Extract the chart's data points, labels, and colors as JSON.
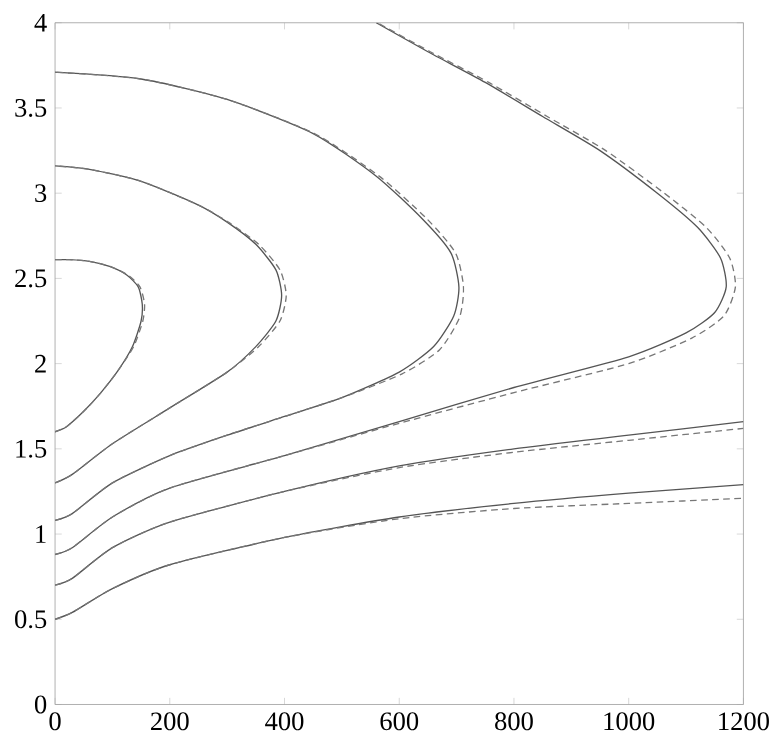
{
  "chart_data": {
    "type": "line",
    "xlim": [
      0,
      1200
    ],
    "ylim": [
      0,
      4
    ],
    "xticks": [
      0,
      200,
      400,
      600,
      800,
      1000,
      1200
    ],
    "yticks": [
      0,
      0.5,
      1,
      1.5,
      2,
      2.5,
      3,
      3.5,
      4
    ],
    "grid": false,
    "marker": "none",
    "series": [
      {
        "color": "#555555",
        "line_style": "solid",
        "x": [
          0,
          20,
          50,
          80,
          110,
          135,
          150,
          152,
          145,
          125,
          95,
          60,
          25,
          0
        ],
        "values": [
          1.6,
          1.63,
          1.72,
          1.83,
          1.96,
          2.1,
          2.25,
          2.35,
          2.45,
          2.52,
          2.57,
          2.6,
          2.61,
          2.61
        ]
      },
      {
        "color": "#777777",
        "line_style": "dashed",
        "x": [
          0,
          20,
          50,
          80,
          110,
          137,
          153,
          156,
          148,
          127,
          96,
          60,
          25,
          0
        ],
        "values": [
          1.6,
          1.63,
          1.72,
          1.83,
          1.96,
          2.1,
          2.25,
          2.35,
          2.45,
          2.52,
          2.57,
          2.6,
          2.61,
          2.61
        ]
      },
      {
        "color": "#555555",
        "line_style": "solid",
        "x": [
          0,
          30,
          100,
          200,
          300,
          350,
          385,
          395,
          385,
          350,
          300,
          250,
          150,
          60,
          0
        ],
        "values": [
          1.3,
          1.35,
          1.53,
          1.74,
          1.95,
          2.1,
          2.25,
          2.4,
          2.55,
          2.7,
          2.83,
          2.93,
          3.07,
          3.14,
          3.16
        ]
      },
      {
        "color": "#777777",
        "line_style": "dashed",
        "x": [
          0,
          30,
          100,
          200,
          300,
          355,
          392,
          403,
          392,
          355,
          302,
          250,
          150,
          60,
          0
        ],
        "values": [
          1.3,
          1.35,
          1.53,
          1.74,
          1.95,
          2.1,
          2.25,
          2.4,
          2.55,
          2.7,
          2.83,
          2.93,
          3.07,
          3.14,
          3.16
        ]
      },
      {
        "color": "#555555",
        "line_style": "solid",
        "x": [
          0,
          30,
          100,
          200,
          300,
          400,
          500,
          600,
          660,
          695,
          704,
          690,
          640,
          560,
          450,
          300,
          150,
          0
        ],
        "values": [
          1.08,
          1.12,
          1.3,
          1.46,
          1.58,
          1.69,
          1.8,
          1.95,
          2.1,
          2.28,
          2.45,
          2.65,
          2.85,
          3.1,
          3.35,
          3.55,
          3.67,
          3.71
        ]
      },
      {
        "color": "#777777",
        "line_style": "dashed",
        "x": [
          0,
          30,
          100,
          200,
          300,
          400,
          500,
          605,
          670,
          705,
          712,
          698,
          648,
          565,
          452,
          300,
          150,
          0
        ],
        "values": [
          1.08,
          1.12,
          1.3,
          1.46,
          1.58,
          1.69,
          1.8,
          1.94,
          2.08,
          2.27,
          2.45,
          2.65,
          2.85,
          3.1,
          3.35,
          3.55,
          3.67,
          3.71
        ]
      },
      {
        "color": "#555555",
        "line_style": "solid",
        "x": [
          0,
          30,
          100,
          200,
          400,
          600,
          800,
          1000,
          1100,
          1150,
          1170,
          1160,
          1120,
          1050,
          950,
          850,
          750,
          650,
          560
        ],
        "values": [
          0.88,
          0.92,
          1.1,
          1.27,
          1.46,
          1.66,
          1.86,
          2.04,
          2.18,
          2.3,
          2.45,
          2.62,
          2.8,
          3.0,
          3.25,
          3.45,
          3.65,
          3.83,
          4.0
        ]
      },
      {
        "color": "#777777",
        "line_style": "dashed",
        "x": [
          0,
          30,
          100,
          200,
          400,
          600,
          800,
          1000,
          1110,
          1166,
          1186,
          1176,
          1135,
          1062,
          960,
          858,
          756,
          654,
          562
        ],
        "values": [
          0.88,
          0.92,
          1.1,
          1.27,
          1.46,
          1.65,
          1.83,
          2.0,
          2.15,
          2.28,
          2.45,
          2.62,
          2.8,
          3.0,
          3.25,
          3.45,
          3.65,
          3.83,
          4.0
        ]
      },
      {
        "color": "#555555",
        "line_style": "solid",
        "x": [
          0,
          30,
          100,
          200,
          400,
          600,
          800,
          1000,
          1200
        ],
        "values": [
          0.7,
          0.74,
          0.92,
          1.07,
          1.25,
          1.4,
          1.5,
          1.58,
          1.66
        ]
      },
      {
        "color": "#777777",
        "line_style": "dashed",
        "x": [
          0,
          30,
          100,
          200,
          400,
          600,
          800,
          1000,
          1200
        ],
        "values": [
          0.7,
          0.74,
          0.92,
          1.07,
          1.25,
          1.39,
          1.48,
          1.55,
          1.62
        ]
      },
      {
        "color": "#555555",
        "line_style": "solid",
        "x": [
          0,
          30,
          100,
          200,
          400,
          600,
          800,
          1000,
          1200
        ],
        "values": [
          0.5,
          0.54,
          0.68,
          0.82,
          0.98,
          1.1,
          1.18,
          1.24,
          1.29
        ]
      },
      {
        "color": "#777777",
        "line_style": "dashed",
        "x": [
          0,
          30,
          100,
          200,
          400,
          600,
          800,
          1000,
          1200
        ],
        "values": [
          0.5,
          0.54,
          0.68,
          0.82,
          0.98,
          1.09,
          1.15,
          1.18,
          1.21
        ]
      }
    ]
  }
}
